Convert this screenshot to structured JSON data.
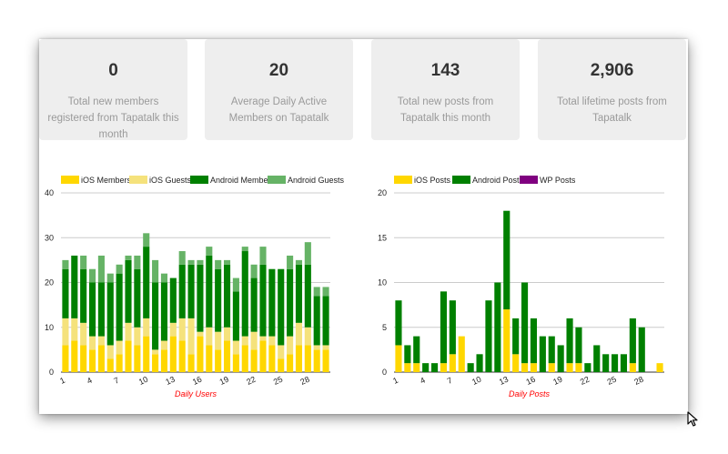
{
  "stats": [
    {
      "value": "0",
      "label": "Total new members registered from Tapatalk this month"
    },
    {
      "value": "20",
      "label": "Average Daily Active Members on Tapatalk"
    },
    {
      "value": "143",
      "label": "Total new posts from Tapatalk this month"
    },
    {
      "value": "2,906",
      "label": "Total lifetime posts from Tapatalk"
    }
  ],
  "chart_data": [
    {
      "type": "bar",
      "stacked": true,
      "xlabel": "Daily Users",
      "ylabel": "",
      "ylim": [
        0,
        40
      ],
      "yticks": [
        0,
        10,
        20,
        30,
        40
      ],
      "x": [
        1,
        2,
        3,
        4,
        5,
        6,
        7,
        8,
        9,
        10,
        11,
        12,
        13,
        14,
        15,
        16,
        17,
        18,
        19,
        20,
        21,
        22,
        23,
        24,
        25,
        26,
        27,
        28,
        29,
        30
      ],
      "xtick_labels": [
        "1",
        "4",
        "7",
        "10",
        "13",
        "16",
        "19",
        "22",
        "25",
        "28"
      ],
      "legend_position": "top",
      "grid": true,
      "series": [
        {
          "name": "iOS Members",
          "color": "#ffd700",
          "values": [
            6,
            7,
            6,
            5,
            6,
            3,
            4,
            7,
            6,
            8,
            4,
            5,
            8,
            7,
            4,
            8,
            6,
            5,
            7,
            4,
            6,
            5,
            7,
            6,
            3,
            4,
            6,
            6,
            5,
            5
          ]
        },
        {
          "name": "iOS Guests",
          "color": "#f5e27c",
          "values": [
            6,
            5,
            5,
            3,
            2,
            3,
            3,
            4,
            4,
            4,
            1,
            2,
            3,
            5,
            8,
            1,
            4,
            4,
            3,
            3,
            2,
            4,
            1,
            2,
            3,
            4,
            5,
            4,
            1,
            1
          ]
        },
        {
          "name": "Android Members",
          "color": "#008000",
          "values": [
            11,
            14,
            12,
            12,
            12,
            14,
            15,
            14,
            13,
            16,
            15,
            13,
            10,
            12,
            12,
            15,
            16,
            14,
            14,
            11,
            19,
            12,
            16,
            15,
            17,
            15,
            13,
            14,
            11,
            11
          ]
        },
        {
          "name": "Android Guests",
          "color": "#66b366",
          "values": [
            2,
            0,
            3,
            3,
            6,
            2,
            2,
            1,
            3,
            3,
            5,
            2,
            0,
            3,
            1,
            1,
            2,
            2,
            1,
            3,
            1,
            3,
            4,
            0,
            0,
            3,
            1,
            5,
            2,
            2
          ]
        }
      ]
    },
    {
      "type": "bar",
      "stacked": true,
      "xlabel": "Daily Posts",
      "ylabel": "",
      "ylim": [
        0,
        20
      ],
      "yticks": [
        0,
        5,
        10,
        15,
        20
      ],
      "x": [
        1,
        2,
        3,
        4,
        5,
        6,
        7,
        8,
        9,
        10,
        11,
        12,
        13,
        14,
        15,
        16,
        17,
        18,
        19,
        20,
        21,
        22,
        23,
        24,
        25,
        26,
        27,
        28,
        29,
        30
      ],
      "xtick_labels": [
        "1",
        "4",
        "7",
        "10",
        "13",
        "16",
        "19",
        "22",
        "25",
        "28"
      ],
      "legend_position": "top",
      "grid": true,
      "series": [
        {
          "name": "iOS Posts",
          "color": "#ffd700",
          "values": [
            3,
            1,
            1,
            0,
            0,
            1,
            2,
            4,
            0,
            0,
            0,
            0,
            7,
            2,
            1,
            1,
            0,
            1,
            0,
            1,
            1,
            0,
            0,
            0,
            0,
            0,
            1,
            0,
            0,
            1
          ]
        },
        {
          "name": "Android Posts",
          "color": "#008000",
          "values": [
            5,
            2,
            3,
            1,
            1,
            8,
            6,
            0,
            1,
            2,
            8,
            10,
            11,
            4,
            9,
            5,
            4,
            3,
            3,
            5,
            4,
            1,
            3,
            2,
            2,
            2,
            5,
            5,
            0,
            0
          ]
        },
        {
          "name": "WP Posts",
          "color": "#800080",
          "values": [
            0,
            0,
            0,
            0,
            0,
            0,
            0,
            0,
            0,
            0,
            0,
            0,
            0,
            0,
            0,
            0,
            0,
            0,
            0,
            0,
            0,
            0,
            0,
            0,
            0,
            0,
            0,
            0,
            0,
            0
          ]
        }
      ]
    }
  ]
}
